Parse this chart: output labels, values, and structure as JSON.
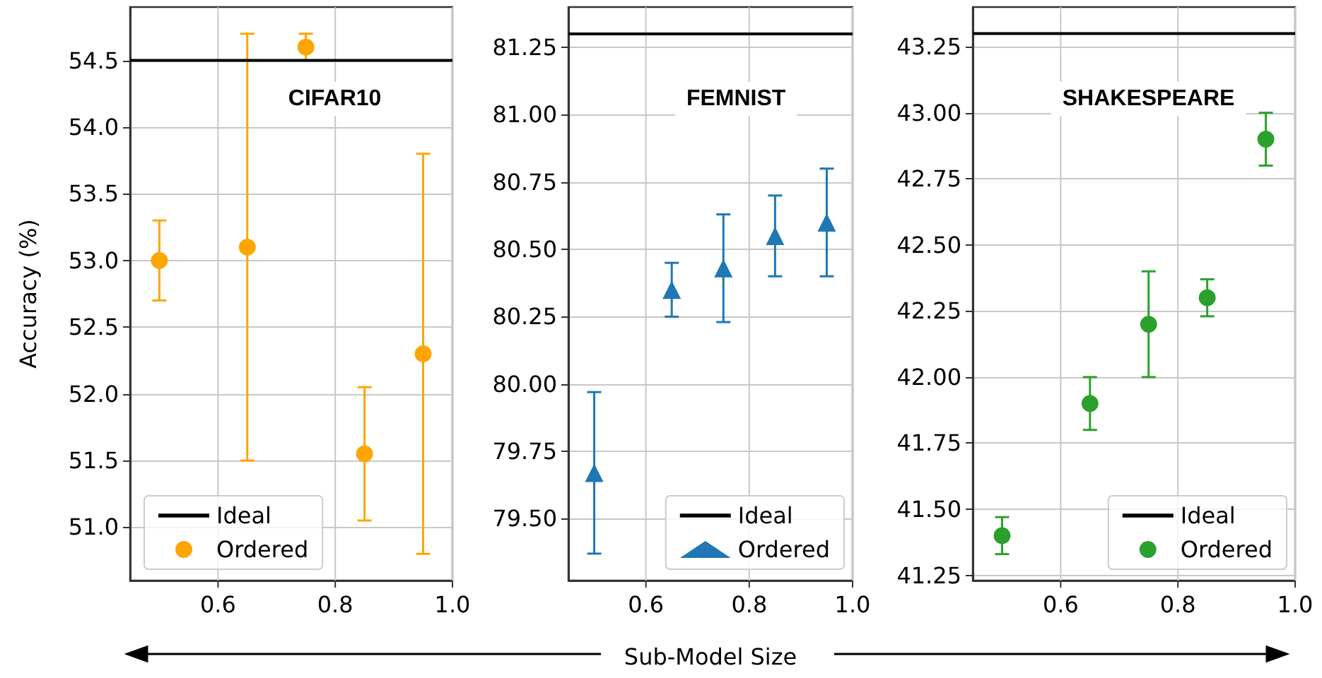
{
  "chart_data": [
    {
      "type": "scatter",
      "title": "CIFAR10",
      "ylabel": "Accuracy (%)",
      "xlim": [
        0.45,
        1.0
      ],
      "xticks": [
        {
          "value": 0.6,
          "label": "0.6"
        },
        {
          "value": 0.8,
          "label": "0.8"
        },
        {
          "value": 1,
          "label": "1.0"
        }
      ],
      "ylim": [
        50.6,
        54.9
      ],
      "yticks": [
        {
          "value": 51,
          "label": "51.0"
        },
        {
          "value": 51.5,
          "label": "51.5"
        },
        {
          "value": 52,
          "label": "52.0"
        },
        {
          "value": 52.5,
          "label": "52.5"
        },
        {
          "value": 53,
          "label": "53.0"
        },
        {
          "value": 53.5,
          "label": "53.5"
        },
        {
          "value": 54,
          "label": "54.0"
        },
        {
          "value": 54.5,
          "label": "54.5"
        }
      ],
      "grid": true,
      "legend": "bottom left",
      "marker": "circle",
      "series": [
        {
          "name": "Ideal",
          "type": "line",
          "marker": "none",
          "color": "#000000",
          "x": [
            0.45,
            1.0
          ],
          "values": [
            54.5,
            54.5
          ]
        },
        {
          "name": "Ordered",
          "color": "#ffa500",
          "x": [
            0.5,
            0.65,
            0.75,
            0.85,
            0.95
          ],
          "values": [
            53.0,
            53.1,
            54.6,
            51.55,
            52.3
          ],
          "errors": [
            0.3,
            1.6,
            0.1,
            0.5,
            1.5
          ]
        }
      ]
    },
    {
      "type": "scatter",
      "title": "FEMNIST",
      "xlabel": "Sub-Model Size",
      "xlim": [
        0.45,
        1.0
      ],
      "xticks": [
        {
          "value": 0.6,
          "label": "0.6"
        },
        {
          "value": 0.8,
          "label": "0.8"
        },
        {
          "value": 1,
          "label": "1.0"
        }
      ],
      "ylim": [
        79.27,
        81.4
      ],
      "yticks": [
        {
          "value": 79.5,
          "label": "79.50"
        },
        {
          "value": 79.75,
          "label": "79.75"
        },
        {
          "value": 80,
          "label": "80.00"
        },
        {
          "value": 80.25,
          "label": "80.25"
        },
        {
          "value": 80.5,
          "label": "80.50"
        },
        {
          "value": 80.75,
          "label": "80.75"
        },
        {
          "value": 81,
          "label": "81.00"
        },
        {
          "value": 81.25,
          "label": "81.25"
        }
      ],
      "grid": true,
      "legend": "bottom right",
      "marker": "triangle",
      "series": [
        {
          "name": "Ideal",
          "type": "line",
          "marker": "none",
          "color": "#000000",
          "x": [
            0.45,
            1.0
          ],
          "values": [
            81.3,
            81.3
          ]
        },
        {
          "name": "Ordered",
          "color": "#1f77b4",
          "x": [
            0.5,
            0.65,
            0.75,
            0.85,
            0.95
          ],
          "values": [
            79.67,
            80.35,
            80.43,
            80.55,
            80.6
          ],
          "errors": [
            0.3,
            0.1,
            0.2,
            0.15,
            0.2
          ]
        }
      ]
    },
    {
      "type": "scatter",
      "title": "SHAKESPEARE",
      "xlim": [
        0.45,
        1.0
      ],
      "xticks": [
        {
          "value": 0.6,
          "label": "0.6"
        },
        {
          "value": 0.8,
          "label": "0.8"
        },
        {
          "value": 1,
          "label": "1.0"
        }
      ],
      "ylim": [
        41.23,
        43.4
      ],
      "yticks": [
        {
          "value": 41.25,
          "label": "41.25"
        },
        {
          "value": 41.5,
          "label": "41.50"
        },
        {
          "value": 41.75,
          "label": "41.75"
        },
        {
          "value": 42,
          "label": "42.00"
        },
        {
          "value": 42.25,
          "label": "42.25"
        },
        {
          "value": 42.5,
          "label": "42.50"
        },
        {
          "value": 42.75,
          "label": "42.75"
        },
        {
          "value": 43,
          "label": "43.00"
        },
        {
          "value": 43.25,
          "label": "43.25"
        }
      ],
      "grid": true,
      "legend": "bottom right",
      "marker": "circle",
      "series": [
        {
          "name": "Ideal",
          "type": "line",
          "marker": "none",
          "color": "#000000",
          "x": [
            0.45,
            1.0
          ],
          "values": [
            43.3,
            43.3
          ]
        },
        {
          "name": "Ordered",
          "color": "#2ca02c",
          "x": [
            0.5,
            0.65,
            0.75,
            0.85,
            0.95
          ],
          "values": [
            41.4,
            41.9,
            42.2,
            42.3,
            42.9
          ],
          "errors": [
            0.07,
            0.1,
            0.2,
            0.07,
            0.1
          ]
        }
      ]
    }
  ]
}
